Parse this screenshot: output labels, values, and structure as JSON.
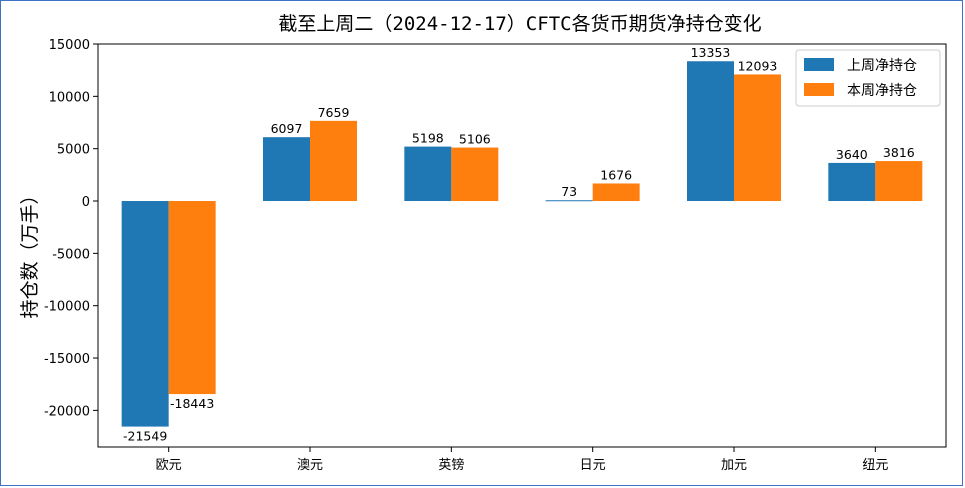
{
  "chart_data": {
    "type": "bar",
    "title": "截至上周二（2024-12-17）CFTC各货币期货净持仓变化",
    "xlabel": "",
    "ylabel": "持仓数（万手）",
    "categories": [
      "欧元",
      "澳元",
      "英镑",
      "日元",
      "加元",
      "纽元"
    ],
    "series": [
      {
        "name": "上周净持仓",
        "color": "#1f77b4",
        "values": [
          -21549,
          6097,
          5198,
          73,
          13353,
          3640
        ]
      },
      {
        "name": "本周净持仓",
        "color": "#ff7f0e",
        "values": [
          -18443,
          7659,
          5106,
          1676,
          12093,
          3816
        ]
      }
    ],
    "ylim": [
      -23500,
      15000
    ],
    "yticks": [
      15000,
      10000,
      5000,
      0,
      -5000,
      -10000,
      -15000,
      -20000
    ],
    "grid": false,
    "legend_position": "top-right"
  },
  "colors": {
    "frame_border": "#3f72c4",
    "axis": "#000000"
  }
}
